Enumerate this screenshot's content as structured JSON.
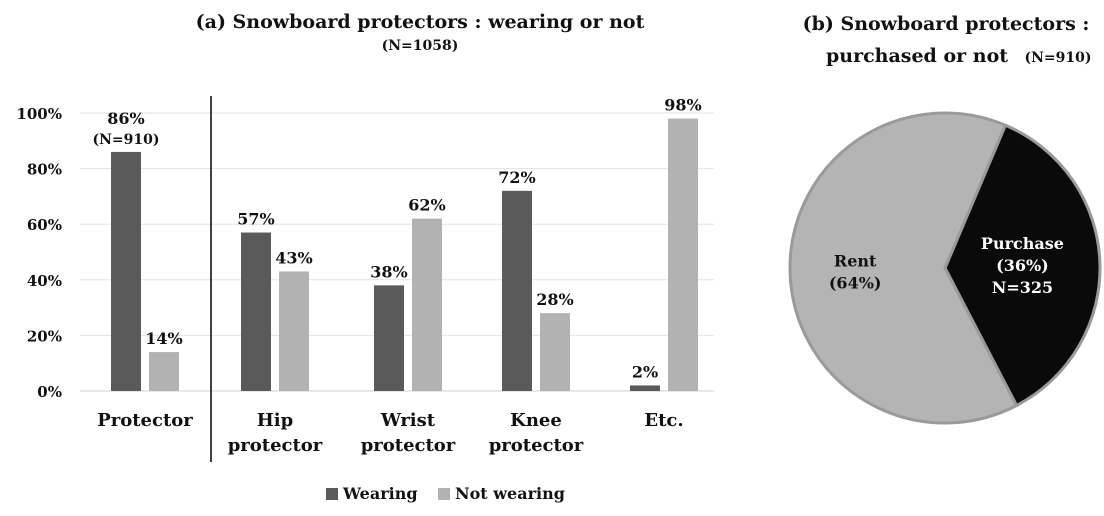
{
  "chart_data": [
    {
      "type": "bar",
      "title": "(a) Snowboard protectors : wearing or not",
      "subtitle": "(N=1058)",
      "categories": [
        "Protector",
        "Hip protector",
        "Wrist protector",
        "Knee protector",
        "Etc."
      ],
      "category_lines": [
        [
          "Protector"
        ],
        [
          "Hip",
          "protector"
        ],
        [
          "Wrist",
          "protector"
        ],
        [
          "Knee",
          "protector"
        ],
        [
          "Etc."
        ]
      ],
      "series": [
        {
          "name": "Wearing",
          "color": "#5a5a5a",
          "values": [
            86,
            57,
            38,
            72,
            2
          ],
          "labels": [
            "86%",
            "57%",
            "38%",
            "72%",
            "2%"
          ]
        },
        {
          "name": "Not wearing",
          "color": "#b2b2b2",
          "values": [
            14,
            43,
            62,
            28,
            98
          ],
          "labels": [
            "14%",
            "43%",
            "62%",
            "28%",
            "98%"
          ]
        }
      ],
      "annotations": [
        {
          "series": 0,
          "index": 0,
          "text": "(N=910)"
        }
      ],
      "yticks": [
        0,
        20,
        40,
        60,
        80,
        100
      ],
      "ytick_labels": [
        "0%",
        "20%",
        "40%",
        "60%",
        "80%",
        "100%"
      ],
      "ylim": [
        0,
        100
      ],
      "legend": {
        "position": "bottom",
        "items": [
          "Wearing",
          "Not wearing"
        ]
      }
    },
    {
      "type": "pie",
      "title_lines": [
        "(b) Snowboard protectors :",
        "purchased or not"
      ],
      "title_n": "(N=910)",
      "slices": [
        {
          "name": "Purchase",
          "value": 36,
          "color": "#0a0a0a",
          "text_color": "#ffffff",
          "label_lines": [
            "Purchase",
            "(36%)",
            "N=325"
          ]
        },
        {
          "name": "Rent",
          "value": 64,
          "color": "#b4b4b4",
          "text_color": "#111111",
          "label_lines": [
            "Rent",
            "(64%)"
          ]
        }
      ]
    }
  ]
}
